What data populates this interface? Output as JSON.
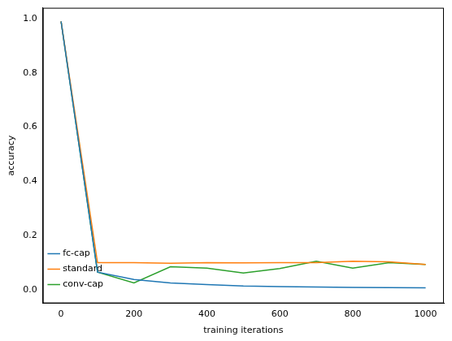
{
  "chart_data": {
    "type": "line",
    "x_label": "training iterations",
    "y_label": "accuracy",
    "x": [
      0,
      100,
      200,
      300,
      400,
      500,
      600,
      700,
      800,
      900,
      1000
    ],
    "xlim": [
      -50,
      1050
    ],
    "xticks": [
      0,
      200,
      400,
      600,
      800,
      1000
    ],
    "ylim": [
      -0.05,
      1.04
    ],
    "yticks": [
      {
        "value": 0,
        "label": "0.0"
      },
      {
        "value": 0.2,
        "label": "0.2"
      },
      {
        "value": 0.4,
        "label": "0.4"
      },
      {
        "value": 0.6,
        "label": "0.6"
      },
      {
        "value": 0.8,
        "label": "0.8"
      },
      {
        "value": 1,
        "label": "1.0"
      }
    ],
    "grid": false,
    "legend": "upper right",
    "series": [
      {
        "name": "fc-cap",
        "color": "#1f77b4",
        "values": [
          0.99,
          0.065,
          0.038,
          0.025,
          0.019,
          0.014,
          0.012,
          0.01,
          0.009,
          0.008,
          0.007
        ]
      },
      {
        "name": "standard",
        "color": "#ff7f0e",
        "values": [
          0.99,
          0.1,
          0.1,
          0.098,
          0.1,
          0.099,
          0.1,
          0.1,
          0.105,
          0.103,
          0.093
        ]
      },
      {
        "name": "conv-cap",
        "color": "#2ca02c",
        "values": [
          0.99,
          0.065,
          0.025,
          0.085,
          0.08,
          0.062,
          0.078,
          0.105,
          0.08,
          0.1,
          0.093
        ]
      }
    ]
  }
}
